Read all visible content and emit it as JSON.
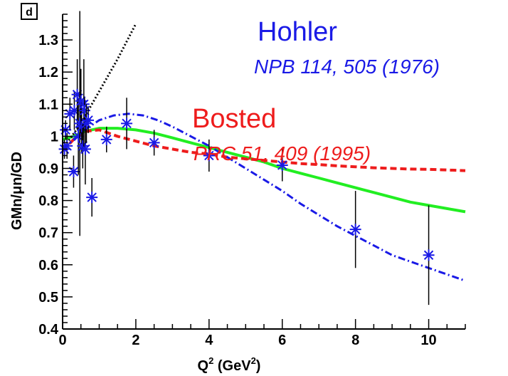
{
  "panel_label": "d",
  "chart_data": {
    "type": "scatter",
    "xlabel_main": "Q",
    "xlabel_sup1": "2",
    "xlabel_mid": " (GeV",
    "xlabel_sup2": "2",
    "xlabel_end": ")",
    "ylabel": "GMn/μn/GD",
    "xlim": [
      0,
      11
    ],
    "ylim": [
      0.4,
      1.38
    ],
    "x_ticks": [
      "0",
      "2",
      "4",
      "6",
      "8",
      "10"
    ],
    "y_ticks": [
      "0.4",
      "0.5",
      "0.6",
      "0.7",
      "0.8",
      "0.9",
      "1",
      "1.1",
      "1.2",
      "1.3"
    ],
    "annotations": {
      "hohler_name": "Hohler",
      "hohler_ref": "NPB 114, 505 (1976)",
      "bosted_name": "Bosted",
      "bosted_ref": "PRC 51, 409 (1995)"
    },
    "colors": {
      "blue": "#1a1ae6",
      "red": "#ee1c1c",
      "green": "#22ee22",
      "black": "#000000"
    },
    "points": [
      {
        "x": 0.05,
        "y": 0.96,
        "err": 0.03
      },
      {
        "x": 0.08,
        "y": 1.02,
        "err": 0.03
      },
      {
        "x": 0.12,
        "y": 0.97,
        "err": 0.04
      },
      {
        "x": 0.2,
        "y": 1.07,
        "err": 0.05
      },
      {
        "x": 0.3,
        "y": 0.89,
        "err": 0.05
      },
      {
        "x": 0.32,
        "y": 1.08,
        "err": 0.06
      },
      {
        "x": 0.4,
        "y": 1.13,
        "err": 0.11
      },
      {
        "x": 0.43,
        "y": 1.0,
        "err": 0.12
      },
      {
        "x": 0.47,
        "y": 1.04,
        "err": 0.35
      },
      {
        "x": 0.5,
        "y": 1.11,
        "err": 0.1
      },
      {
        "x": 0.52,
        "y": 1.03,
        "err": 0.08
      },
      {
        "x": 0.55,
        "y": 0.97,
        "err": 0.07
      },
      {
        "x": 0.58,
        "y": 1.1,
        "err": 0.14
      },
      {
        "x": 0.6,
        "y": 1.08,
        "err": 0.04
      },
      {
        "x": 0.62,
        "y": 0.96,
        "err": 0.11
      },
      {
        "x": 0.65,
        "y": 1.04,
        "err": 0.06
      },
      {
        "x": 0.7,
        "y": 1.05,
        "err": 0.04
      },
      {
        "x": 0.8,
        "y": 0.81,
        "err": 0.06
      },
      {
        "x": 1.2,
        "y": 0.99,
        "err": 0.04
      },
      {
        "x": 1.75,
        "y": 1.04,
        "err": 0.08
      },
      {
        "x": 2.5,
        "y": 0.98,
        "err": 0.04
      },
      {
        "x": 4.0,
        "y": 0.94,
        "err": 0.05
      },
      {
        "x": 6.0,
        "y": 0.91,
        "err": 0.05
      },
      {
        "x": 8.0,
        "y": 0.71,
        "err": 0.12
      },
      {
        "x": 10.0,
        "y": 0.63,
        "err": 0.155
      }
    ],
    "curves": {
      "hohler": {
        "x": [
          0.0,
          0.3,
          0.6,
          1.0,
          1.4,
          1.8,
          2.2,
          2.6,
          3.0,
          3.5,
          4.0,
          4.5,
          5.0,
          5.5,
          6.0,
          6.5,
          7.0,
          7.5,
          8.0,
          8.5,
          9.0,
          9.5,
          10.0,
          10.5,
          11.0
        ],
        "y": [
          0.96,
          0.99,
          1.02,
          1.05,
          1.065,
          1.07,
          1.065,
          1.05,
          1.03,
          1.0,
          0.97,
          0.935,
          0.9,
          0.865,
          0.83,
          0.79,
          0.755,
          0.72,
          0.69,
          0.66,
          0.63,
          0.61,
          0.59,
          0.57,
          0.55
        ]
      },
      "bosted": {
        "x": [
          0.0,
          0.3,
          0.6,
          1.0,
          1.5,
          2.0,
          2.5,
          3.0,
          3.5,
          4.0,
          4.5,
          5.0,
          5.5,
          6.0,
          6.5,
          7.0,
          7.5,
          8.0,
          8.5,
          9.0,
          9.5,
          10.0,
          10.5,
          11.0
        ],
        "y": [
          0.955,
          0.99,
          1.015,
          1.02,
          1.0,
          0.985,
          0.97,
          0.96,
          0.95,
          0.945,
          0.935,
          0.93,
          0.925,
          0.92,
          0.915,
          0.912,
          0.908,
          0.905,
          0.902,
          0.9,
          0.898,
          0.897,
          0.895,
          0.893
        ]
      },
      "green": {
        "x": [
          0.0,
          0.3,
          0.6,
          1.0,
          1.5,
          2.0,
          2.5,
          3.0,
          3.5,
          4.0,
          4.5,
          5.0,
          5.5,
          6.0,
          6.5,
          7.0,
          7.5,
          8.0,
          8.5,
          9.0,
          9.5,
          10.0,
          10.5,
          11.0
        ],
        "y": [
          0.99,
          1.0,
          1.015,
          1.025,
          1.025,
          1.02,
          1.01,
          0.995,
          0.98,
          0.965,
          0.95,
          0.935,
          0.92,
          0.9,
          0.885,
          0.87,
          0.855,
          0.84,
          0.825,
          0.81,
          0.795,
          0.785,
          0.775,
          0.765
        ]
      },
      "dipole": {
        "x": [
          0.0,
          0.5,
          1.0,
          1.5,
          2.0
        ],
        "y": [
          0.96,
          1.04,
          1.14,
          1.24,
          1.35
        ]
      }
    }
  }
}
